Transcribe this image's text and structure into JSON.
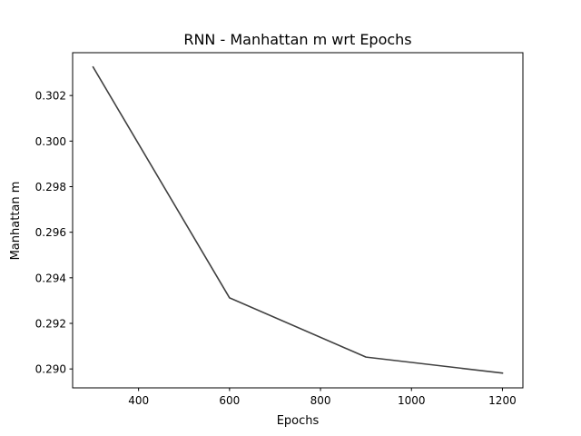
{
  "chart_data": {
    "type": "line",
    "title": "RNN - Manhattan m wrt Epochs",
    "xlabel": "Epochs",
    "ylabel": "Manhattan m",
    "xlim": [
      255,
      1245
    ],
    "ylim": [
      0.28917,
      0.30388
    ],
    "xticks": [
      400,
      600,
      800,
      1000,
      1200
    ],
    "yticks": [
      0.29,
      0.292,
      0.294,
      0.296,
      0.298,
      0.3,
      0.302
    ],
    "ytick_labels": [
      "0.290",
      "0.292",
      "0.294",
      "0.296",
      "0.298",
      "0.300",
      "0.302"
    ],
    "grid": false,
    "series": [
      {
        "color": "#404040",
        "x": [
          300,
          600,
          900,
          1200
        ],
        "y": [
          0.30325,
          0.29312,
          0.29052,
          0.28982
        ]
      }
    ]
  }
}
